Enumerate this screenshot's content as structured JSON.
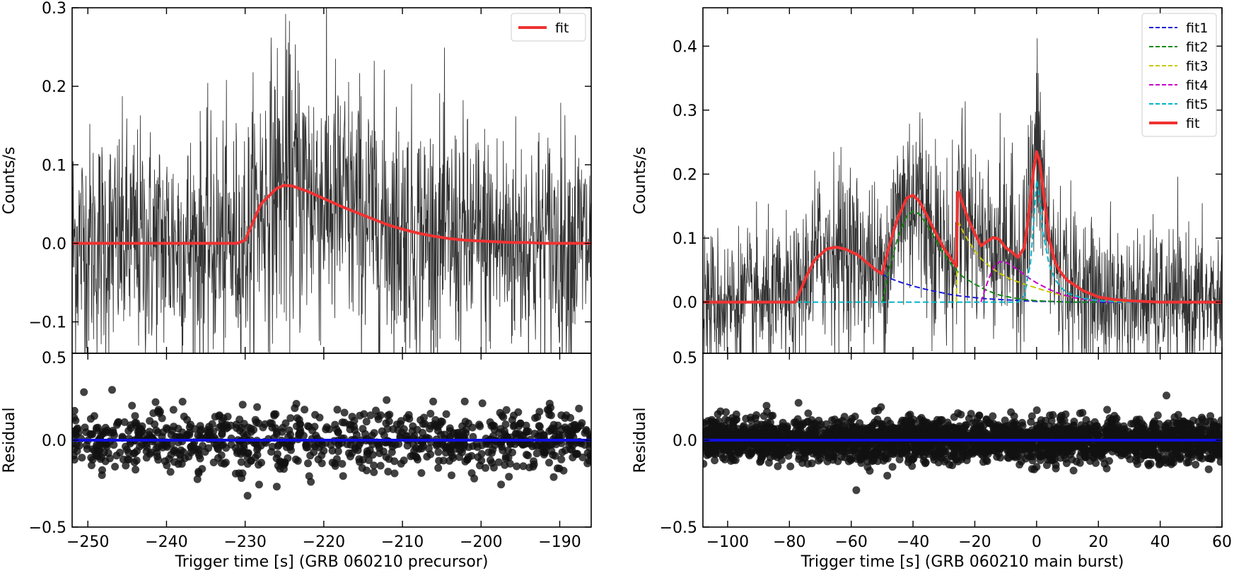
{
  "chart_data": [
    {
      "type": "line",
      "panel": "top-left",
      "ylabel": "Counts/s",
      "xlim": [
        -252,
        -186
      ],
      "ylim": [
        -0.14,
        0.3
      ],
      "xticks": [
        -250,
        -240,
        -230,
        -220,
        -210,
        -200,
        -190
      ],
      "xtick_labels": [
        "−250",
        "−240",
        "−230",
        "−220",
        "−210",
        "−200",
        "−190"
      ],
      "yticks": [
        -0.1,
        0.0,
        0.1,
        0.2,
        0.3
      ],
      "ytick_labels": [
        "−0.1",
        "0.0",
        "0.1",
        "0.2",
        "0.3"
      ],
      "legend": {
        "position": "top-right",
        "entries": [
          {
            "label": "fit",
            "color": "#f03232",
            "style": "solid"
          }
        ]
      },
      "series": [
        {
          "name": "fit",
          "color": "#f03232",
          "x": [
            -252,
            -231,
            -230,
            -228,
            -226,
            -225,
            -224,
            -222,
            -220,
            -218,
            -216,
            -214,
            -212,
            -210,
            -208,
            -206,
            -204,
            -202,
            -200,
            -198,
            -196,
            -194,
            -192,
            -190,
            -186
          ],
          "y": [
            0,
            0,
            0.004,
            0.05,
            0.07,
            0.074,
            0.073,
            0.066,
            0.057,
            0.048,
            0.04,
            0.032,
            0.024,
            0.018,
            0.013,
            0.009,
            0.006,
            0.004,
            0.003,
            0.002,
            0.001,
            0.001,
            0,
            0,
            0
          ]
        }
      ],
      "data_series": {
        "color": "#333333",
        "style": "noisy light curve",
        "noise_sigma": 0.075
      }
    },
    {
      "type": "scatter",
      "panel": "bottom-left",
      "xlabel": "Trigger time [s] (GRB 060210 precursor)",
      "ylabel": "Residual",
      "xlim": [
        -252,
        -186
      ],
      "ylim": [
        -0.5,
        0.5
      ],
      "xticks": [
        -250,
        -240,
        -230,
        -220,
        -210,
        -200,
        -190
      ],
      "xtick_labels": [
        "−250",
        "−240",
        "−230",
        "−220",
        "−210",
        "−200",
        "−190"
      ],
      "yticks": [
        -0.5,
        0.0
      ],
      "ytick_labels": [
        "−0.5",
        "0.0"
      ],
      "top_tick_label": "0.5",
      "reference_line": {
        "y": 0,
        "color": "#1010e0"
      },
      "points": {
        "color": "#111111",
        "spread_sigma": 0.085
      }
    },
    {
      "type": "line",
      "panel": "top-right",
      "ylabel": "Counts/s",
      "xlim": [
        -108,
        60
      ],
      "ylim": [
        -0.08,
        0.46
      ],
      "xticks": [
        -100,
        -80,
        -60,
        -40,
        -20,
        0,
        20,
        40,
        60
      ],
      "xtick_labels": [
        "−100",
        "−80",
        "−60",
        "−40",
        "−20",
        "0",
        "20",
        "40",
        "60"
      ],
      "yticks": [
        0.0,
        0.1,
        0.2,
        0.3,
        0.4
      ],
      "ytick_labels": [
        "0.0",
        "0.1",
        "0.2",
        "0.3",
        "0.4"
      ],
      "legend": {
        "position": "top-right",
        "entries": [
          {
            "label": "fit1",
            "color": "#1a1ad6",
            "style": "dashed"
          },
          {
            "label": "fit2",
            "color": "#138a13",
            "style": "dashed"
          },
          {
            "label": "fit3",
            "color": "#c8c800",
            "style": "dashed"
          },
          {
            "label": "fit4",
            "color": "#c800c8",
            "style": "dashed"
          },
          {
            "label": "fit5",
            "color": "#00b4c8",
            "style": "dashed"
          },
          {
            "label": "fit",
            "color": "#f03232",
            "style": "solid"
          }
        ]
      },
      "series": [
        {
          "name": "fit1",
          "color": "#1a1ad6",
          "style": "dashed",
          "x": [
            -78,
            -75,
            -72,
            -68,
            -65,
            -62,
            -58,
            -55,
            -52,
            -48,
            -44,
            -40,
            -36,
            -32,
            -28,
            -24,
            -20,
            -16,
            -12,
            -8,
            -4,
            0,
            4,
            10,
            20,
            30,
            40
          ],
          "y": [
            0,
            0.035,
            0.065,
            0.083,
            0.086,
            0.083,
            0.074,
            0.062,
            0.05,
            0.038,
            0.031,
            0.025,
            0.02,
            0.016,
            0.012,
            0.009,
            0.007,
            0.005,
            0.004,
            0.003,
            0.002,
            0.001,
            0.001,
            0,
            0,
            0,
            0
          ]
        },
        {
          "name": "fit2",
          "color": "#138a13",
          "style": "dashed",
          "x": [
            -50,
            -48,
            -45,
            -42,
            -40,
            -38,
            -36,
            -33,
            -30,
            -27,
            -24,
            -20,
            -16,
            -12,
            -8,
            -4,
            0,
            5,
            10,
            20
          ],
          "y": [
            0,
            0.045,
            0.1,
            0.135,
            0.142,
            0.138,
            0.125,
            0.1,
            0.075,
            0.055,
            0.04,
            0.028,
            0.018,
            0.011,
            0.007,
            0.004,
            0.002,
            0.001,
            0,
            0
          ]
        },
        {
          "name": "fit3",
          "color": "#c8c800",
          "style": "dashed",
          "x": [
            -26,
            -25.5,
            -25,
            -24,
            -22,
            -20,
            -18,
            -15,
            -12,
            -8,
            -4,
            0,
            4,
            8,
            12,
            16,
            20,
            30
          ],
          "y": [
            0,
            0.12,
            0.123,
            0.112,
            0.095,
            0.08,
            0.068,
            0.055,
            0.045,
            0.035,
            0.028,
            0.022,
            0.016,
            0.011,
            0.007,
            0.004,
            0.002,
            0
          ]
        },
        {
          "name": "fit4",
          "color": "#c800c8",
          "style": "dashed",
          "x": [
            -18,
            -16,
            -14,
            -12,
            -10,
            -8,
            -6,
            -4,
            -2,
            0,
            4,
            8,
            12,
            16,
            20,
            25
          ],
          "y": [
            0,
            0.03,
            0.055,
            0.063,
            0.062,
            0.057,
            0.05,
            0.043,
            0.036,
            0.03,
            0.02,
            0.012,
            0.007,
            0.004,
            0.002,
            0
          ]
        },
        {
          "name": "fit5",
          "color": "#00b4c8",
          "style": "dashed",
          "x": [
            -78,
            -20,
            -6,
            -4,
            -2,
            -1,
            0,
            1,
            2,
            4,
            6,
            8,
            10,
            15,
            20,
            30,
            40
          ],
          "y": [
            0,
            0,
            0,
            0.01,
            0.06,
            0.12,
            0.19,
            0.16,
            0.11,
            0.06,
            0.035,
            0.022,
            0.014,
            0.006,
            0.002,
            0,
            0
          ]
        },
        {
          "name": "fit",
          "color": "#f03232",
          "style": "solid",
          "x": [
            -108,
            -78,
            -75,
            -72,
            -68,
            -65,
            -62,
            -58,
            -55,
            -52,
            -50,
            -48,
            -45,
            -42,
            -40,
            -38,
            -36,
            -33,
            -30,
            -27,
            -26,
            -25.5,
            -25,
            -24,
            -22,
            -20,
            -18,
            -16,
            -14,
            -12,
            -10,
            -8,
            -6,
            -4,
            -3,
            -2,
            -1,
            0,
            1,
            2,
            3,
            4,
            6,
            8,
            10,
            15,
            20,
            25,
            30,
            40,
            60
          ],
          "y": [
            0,
            0,
            0.035,
            0.065,
            0.083,
            0.086,
            0.083,
            0.074,
            0.062,
            0.05,
            0.044,
            0.083,
            0.131,
            0.163,
            0.167,
            0.158,
            0.14,
            0.111,
            0.084,
            0.063,
            0.056,
            0.172,
            0.17,
            0.155,
            0.128,
            0.107,
            0.088,
            0.095,
            0.101,
            0.098,
            0.085,
            0.078,
            0.07,
            0.085,
            0.12,
            0.16,
            0.205,
            0.235,
            0.22,
            0.18,
            0.14,
            0.1,
            0.062,
            0.045,
            0.034,
            0.018,
            0.008,
            0.004,
            0.002,
            0,
            0
          ]
        }
      ],
      "data_series": {
        "color": "#333333",
        "style": "noisy light curve",
        "noise_sigma": 0.055
      }
    },
    {
      "type": "scatter",
      "panel": "bottom-right",
      "xlabel": "Trigger time [s] (GRB 060210 main burst)",
      "ylabel": "Residual",
      "xlim": [
        -108,
        60
      ],
      "ylim": [
        -0.5,
        0.5
      ],
      "xticks": [
        -100,
        -80,
        -60,
        -40,
        -20,
        0,
        20,
        40,
        60
      ],
      "xtick_labels": [
        "−100",
        "−80",
        "−60",
        "−40",
        "−20",
        "0",
        "20",
        "40",
        "60"
      ],
      "yticks": [
        -0.5,
        0.0
      ],
      "ytick_labels": [
        "−0.5",
        "0.0"
      ],
      "top_tick_label": "0.5",
      "reference_line": {
        "y": 0,
        "color": "#1010e0"
      },
      "points": {
        "color": "#111111",
        "spread_sigma": 0.06
      }
    }
  ]
}
